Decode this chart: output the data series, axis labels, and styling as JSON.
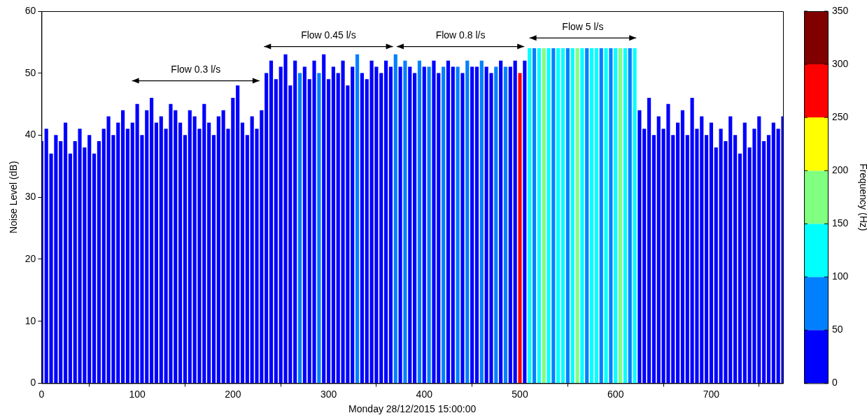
{
  "chart_data": {
    "type": "bar",
    "xlabel": "Monday 28/12/2015 15:00:00",
    "ylabel": "Noise Level (dB)",
    "clabel": "Frequency (Hz)",
    "x": [
      0,
      5,
      10,
      15,
      20,
      25,
      30,
      35,
      40,
      45,
      50,
      55,
      60,
      65,
      70,
      75,
      80,
      85,
      90,
      95,
      100,
      105,
      110,
      115,
      120,
      125,
      130,
      135,
      140,
      145,
      150,
      155,
      160,
      165,
      170,
      175,
      180,
      185,
      190,
      195,
      200,
      205,
      210,
      215,
      220,
      225,
      230,
      235,
      240,
      245,
      250,
      255,
      260,
      265,
      270,
      275,
      280,
      285,
      290,
      295,
      300,
      305,
      310,
      315,
      320,
      325,
      330,
      335,
      340,
      345,
      350,
      355,
      360,
      365,
      370,
      375,
      380,
      385,
      390,
      395,
      400,
      405,
      410,
      415,
      420,
      425,
      430,
      435,
      440,
      445,
      450,
      455,
      460,
      465,
      470,
      475,
      480,
      485,
      490,
      495,
      500,
      505,
      510,
      515,
      520,
      525,
      530,
      535,
      540,
      545,
      550,
      555,
      560,
      565,
      570,
      575,
      580,
      585,
      590,
      595,
      600,
      605,
      610,
      615,
      620,
      625,
      630,
      635,
      640,
      645,
      650,
      655,
      660,
      665,
      670,
      675,
      680,
      685,
      690,
      695,
      700,
      705,
      710,
      715,
      720,
      725,
      730,
      735,
      740,
      745,
      750,
      755,
      760,
      765,
      770,
      775
    ],
    "values": [
      39,
      41,
      37,
      40,
      39,
      42,
      37,
      39,
      41,
      38,
      40,
      37,
      39,
      41,
      43,
      40,
      42,
      44,
      41,
      42,
      45,
      40,
      44,
      46,
      42,
      43,
      41,
      45,
      44,
      42,
      40,
      44,
      43,
      41,
      45,
      42,
      40,
      43,
      44,
      41,
      46,
      48,
      42,
      40,
      43,
      41,
      44,
      50,
      52,
      49,
      51,
      53,
      48,
      52,
      50,
      51,
      49,
      52,
      50,
      53,
      49,
      51,
      50,
      52,
      48,
      51,
      53,
      50,
      49,
      52,
      51,
      50,
      52,
      51,
      53,
      51,
      52,
      51,
      50,
      52,
      51,
      51,
      52,
      50,
      51,
      52,
      51,
      51,
      50,
      52,
      51,
      51,
      52,
      51,
      50,
      51,
      52,
      51,
      51,
      52,
      50,
      52,
      54,
      54,
      54,
      54,
      54,
      54,
      54,
      54,
      54,
      54,
      54,
      54,
      54,
      54,
      54,
      54,
      54,
      54,
      54,
      54,
      54,
      54,
      54,
      44,
      41,
      46,
      40,
      43,
      41,
      45,
      40,
      42,
      44,
      40,
      46,
      41,
      43,
      40,
      42,
      38,
      41,
      39,
      43,
      40,
      37,
      42,
      38,
      41,
      43,
      39,
      40,
      42,
      41,
      43
    ],
    "colors": [
      "#0000ff",
      "#0000ff",
      "#0000ff",
      "#0000ff",
      "#0000ff",
      "#0000ff",
      "#0000ff",
      "#0000ff",
      "#0000ff",
      "#0000ff",
      "#0000ff",
      "#0000ff",
      "#0000ff",
      "#0000ff",
      "#0000ff",
      "#0000ff",
      "#0000ff",
      "#0000ff",
      "#0000ff",
      "#0000ff",
      "#0000ff",
      "#0000ff",
      "#0000ff",
      "#0000ff",
      "#0000ff",
      "#0000ff",
      "#0000ff",
      "#0000ff",
      "#0000ff",
      "#0000ff",
      "#0000ff",
      "#0000ff",
      "#0000ff",
      "#0000ff",
      "#0000ff",
      "#0000ff",
      "#0000ff",
      "#0000ff",
      "#0000ff",
      "#0000ff",
      "#0000ff",
      "#0000ff",
      "#0000ff",
      "#0000ff",
      "#0000ff",
      "#0000ff",
      "#0000ff",
      "#0000ff",
      "#0000ff",
      "#0000ff",
      "#0000ff",
      "#0000ff",
      "#0000ff",
      "#0000ff",
      "#0080ff",
      "#0000ff",
      "#0000ff",
      "#0000ff",
      "#0080ff",
      "#0000ff",
      "#0000ff",
      "#0000ff",
      "#0000ff",
      "#0000ff",
      "#0000ff",
      "#0000ff",
      "#0080ff",
      "#0000ff",
      "#0000ff",
      "#0000ff",
      "#0000ff",
      "#0000ff",
      "#0000ff",
      "#0000ff",
      "#0080ff",
      "#0000ff",
      "#0080ff",
      "#0000ff",
      "#0000ff",
      "#0080ff",
      "#0000ff",
      "#0080ff",
      "#0000ff",
      "#0000ff",
      "#0080ff",
      "#0000ff",
      "#0000ff",
      "#0080ff",
      "#0000ff",
      "#0080ff",
      "#0000ff",
      "#0000ff",
      "#0080ff",
      "#0000ff",
      "#0000ff",
      "#0080ff",
      "#0000ff",
      "#0080ff",
      "#0000ff",
      "#0000ff",
      "#ff0000",
      "#0000ff",
      "#00ffff",
      "#0080ff",
      "#00ffff",
      "#80ff80",
      "#00ffff",
      "#0080ff",
      "#00ffff",
      "#00ffff",
      "#0080ff",
      "#00ffff",
      "#80ff80",
      "#00ffff",
      "#0080ff",
      "#00ffff",
      "#00ffff",
      "#0080ff",
      "#00ffff",
      "#0080ff",
      "#00ffff",
      "#80ff80",
      "#00ffff",
      "#0080ff",
      "#00ffff",
      "#0000ff",
      "#0000ff",
      "#0000ff",
      "#0000ff",
      "#0000ff",
      "#0000ff",
      "#0000ff",
      "#0000ff",
      "#0000ff",
      "#0000ff",
      "#0000ff",
      "#0000ff",
      "#0000ff",
      "#0000ff",
      "#0000ff",
      "#0000ff",
      "#0000ff",
      "#0000ff",
      "#0000ff",
      "#0000ff",
      "#0000ff",
      "#0000ff",
      "#0000ff",
      "#0000ff",
      "#0000ff",
      "#0000ff",
      "#0000ff",
      "#0000ff",
      "#0000ff",
      "#0000ff",
      "#0000ff"
    ],
    "clim": [
      0,
      350
    ],
    "cticks": [
      0,
      50,
      100,
      150,
      200,
      250,
      300,
      350
    ],
    "xlim": [
      0,
      775
    ],
    "xticks": [
      0,
      100,
      200,
      300,
      400,
      500,
      600,
      700
    ],
    "ylim": [
      0,
      60
    ],
    "yticks": [
      0,
      10,
      20,
      30,
      40,
      50,
      60
    ],
    "annotations": [
      "Flow 0.3 l/s",
      "Flow 0.45 l/s",
      "Flow 0.8 l/s",
      "Flow 5 l/s"
    ],
    "grid": false,
    "legend": false
  }
}
